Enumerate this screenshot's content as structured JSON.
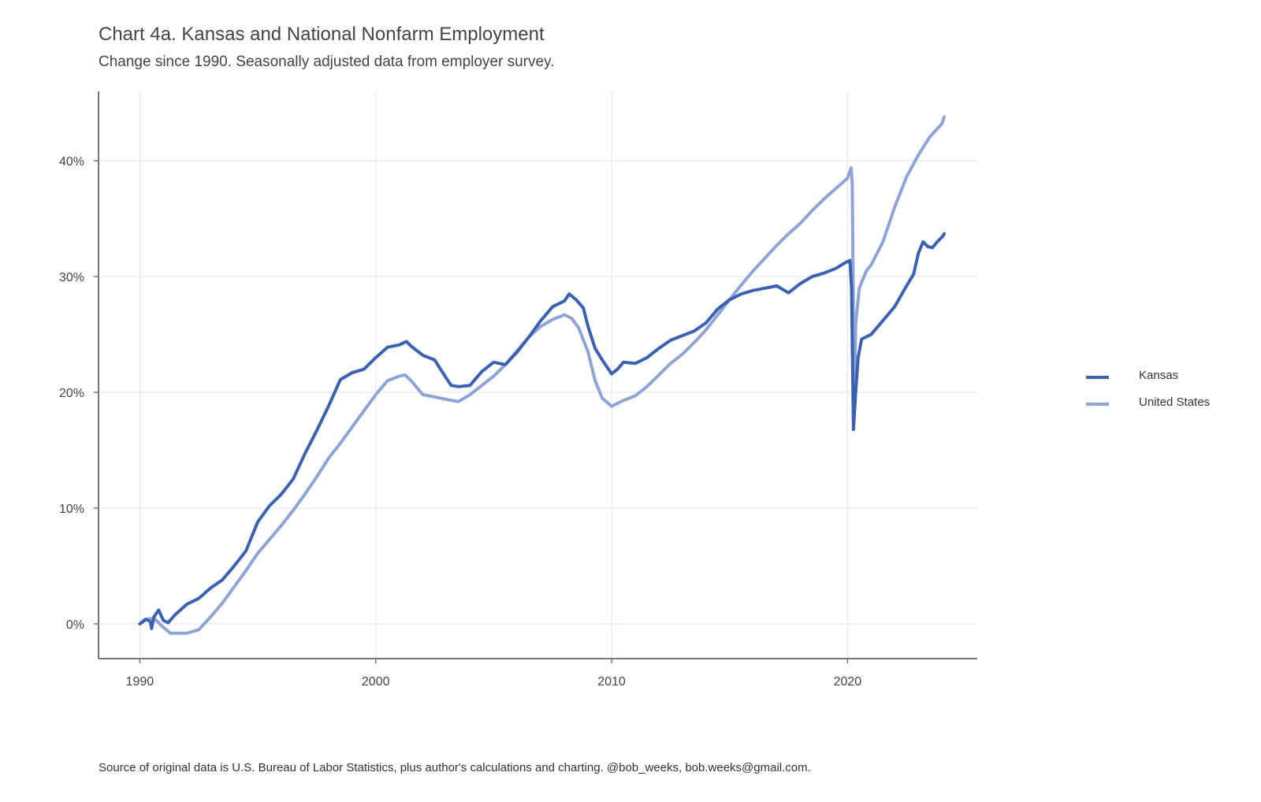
{
  "title": "Chart 4a. Kansas and National Nonfarm Employment",
  "subtitle": "Change since 1990. Seasonally adjusted data from employer survey.",
  "caption": "Source of original data is U.S. Bureau of Labor Statistics, plus author's calculations and charting. @bob_weeks, bob.weeks@gmail.com.",
  "colors": {
    "kansas": "#3a62b0",
    "united_states": "#8fa4d6",
    "grid": "#e4e4e4",
    "axis": "#777777"
  },
  "legend": {
    "placement": "right",
    "items": [
      {
        "label": "Kansas",
        "color": "#3a62b0"
      },
      {
        "label": "United States",
        "color": "#8fa4d6"
      }
    ]
  },
  "chart_data": {
    "type": "line",
    "title": "Chart 4a. Kansas and National Nonfarm Employment",
    "subtitle": "Change since 1990. Seasonally adjusted data from employer survey.",
    "xlabel": "",
    "ylabel": "",
    "xlim": [
      1988.25,
      2025.5
    ],
    "ylim": [
      -3,
      46
    ],
    "grid": true,
    "x_ticks": [
      1990,
      2000,
      2010,
      2020
    ],
    "x_tick_labels": [
      "1990",
      "2000",
      "2010",
      "2020"
    ],
    "y_ticks": [
      0,
      10,
      20,
      30,
      40
    ],
    "y_tick_labels": [
      "0%",
      "10%",
      "20%",
      "30%",
      "40%"
    ],
    "series": [
      {
        "name": "Kansas",
        "color": "#3a62b0",
        "points": [
          [
            1990.0,
            0.0
          ],
          [
            1990.25,
            0.4
          ],
          [
            1990.45,
            0.2
          ],
          [
            1990.5,
            -0.4
          ],
          [
            1990.6,
            0.6
          ],
          [
            1990.8,
            1.2
          ],
          [
            1991.0,
            0.3
          ],
          [
            1991.2,
            0.1
          ],
          [
            1991.5,
            0.8
          ],
          [
            1992.0,
            1.7
          ],
          [
            1992.5,
            2.2
          ],
          [
            1993.0,
            3.1
          ],
          [
            1993.5,
            3.8
          ],
          [
            1994.0,
            5.0
          ],
          [
            1994.5,
            6.3
          ],
          [
            1995.0,
            8.8
          ],
          [
            1995.5,
            10.2
          ],
          [
            1996.0,
            11.2
          ],
          [
            1996.5,
            12.5
          ],
          [
            1997.0,
            14.7
          ],
          [
            1997.5,
            16.7
          ],
          [
            1998.0,
            18.8
          ],
          [
            1998.5,
            21.1
          ],
          [
            1999.0,
            21.7
          ],
          [
            1999.5,
            22.0
          ],
          [
            2000.0,
            23.0
          ],
          [
            2000.5,
            23.9
          ],
          [
            2001.0,
            24.1
          ],
          [
            2001.3,
            24.4
          ],
          [
            2001.5,
            24.0
          ],
          [
            2002.0,
            23.2
          ],
          [
            2002.5,
            22.8
          ],
          [
            2003.0,
            21.2
          ],
          [
            2003.2,
            20.6
          ],
          [
            2003.5,
            20.5
          ],
          [
            2004.0,
            20.6
          ],
          [
            2004.5,
            21.8
          ],
          [
            2005.0,
            22.6
          ],
          [
            2005.5,
            22.4
          ],
          [
            2006.0,
            23.5
          ],
          [
            2006.5,
            24.8
          ],
          [
            2007.0,
            26.2
          ],
          [
            2007.5,
            27.4
          ],
          [
            2008.0,
            27.9
          ],
          [
            2008.2,
            28.5
          ],
          [
            2008.5,
            28.0
          ],
          [
            2008.8,
            27.3
          ],
          [
            2009.0,
            25.7
          ],
          [
            2009.3,
            23.8
          ],
          [
            2009.6,
            22.8
          ],
          [
            2010.0,
            21.6
          ],
          [
            2010.25,
            22.0
          ],
          [
            2010.5,
            22.6
          ],
          [
            2011.0,
            22.5
          ],
          [
            2011.5,
            23.0
          ],
          [
            2012.0,
            23.8
          ],
          [
            2012.5,
            24.5
          ],
          [
            2013.0,
            24.9
          ],
          [
            2013.5,
            25.3
          ],
          [
            2014.0,
            26.0
          ],
          [
            2014.5,
            27.2
          ],
          [
            2015.0,
            28.0
          ],
          [
            2015.5,
            28.5
          ],
          [
            2016.0,
            28.8
          ],
          [
            2016.5,
            29.0
          ],
          [
            2017.0,
            29.2
          ],
          [
            2017.5,
            28.6
          ],
          [
            2018.0,
            29.4
          ],
          [
            2018.5,
            30.0
          ],
          [
            2019.0,
            30.3
          ],
          [
            2019.5,
            30.7
          ],
          [
            2019.9,
            31.2
          ],
          [
            2020.1,
            31.4
          ],
          [
            2020.17,
            29.0
          ],
          [
            2020.25,
            16.8
          ],
          [
            2020.33,
            19.5
          ],
          [
            2020.45,
            23.0
          ],
          [
            2020.6,
            24.6
          ],
          [
            2021.0,
            25.0
          ],
          [
            2021.5,
            26.2
          ],
          [
            2022.0,
            27.4
          ],
          [
            2022.5,
            29.2
          ],
          [
            2022.8,
            30.2
          ],
          [
            2023.0,
            32.0
          ],
          [
            2023.2,
            33.0
          ],
          [
            2023.4,
            32.6
          ],
          [
            2023.6,
            32.5
          ],
          [
            2023.8,
            33.0
          ],
          [
            2024.0,
            33.4
          ],
          [
            2024.1,
            33.7
          ]
        ]
      },
      {
        "name": "United States",
        "color": "#8fa4d6",
        "points": [
          [
            1990.0,
            0.0
          ],
          [
            1990.3,
            0.4
          ],
          [
            1990.6,
            0.5
          ],
          [
            1991.0,
            -0.3
          ],
          [
            1991.3,
            -0.8
          ],
          [
            1991.6,
            -0.8
          ],
          [
            1992.0,
            -0.8
          ],
          [
            1992.5,
            -0.5
          ],
          [
            1993.0,
            0.6
          ],
          [
            1993.5,
            1.8
          ],
          [
            1994.0,
            3.2
          ],
          [
            1994.5,
            4.6
          ],
          [
            1995.0,
            6.1
          ],
          [
            1995.5,
            7.3
          ],
          [
            1996.0,
            8.5
          ],
          [
            1996.5,
            9.8
          ],
          [
            1997.0,
            11.2
          ],
          [
            1997.5,
            12.7
          ],
          [
            1998.0,
            14.3
          ],
          [
            1998.5,
            15.6
          ],
          [
            1999.0,
            17.0
          ],
          [
            1999.5,
            18.4
          ],
          [
            2000.0,
            19.8
          ],
          [
            2000.5,
            21.0
          ],
          [
            2001.0,
            21.4
          ],
          [
            2001.25,
            21.5
          ],
          [
            2001.5,
            21.0
          ],
          [
            2002.0,
            19.8
          ],
          [
            2002.5,
            19.6
          ],
          [
            2003.0,
            19.4
          ],
          [
            2003.5,
            19.2
          ],
          [
            2004.0,
            19.8
          ],
          [
            2004.5,
            20.6
          ],
          [
            2005.0,
            21.4
          ],
          [
            2005.5,
            22.4
          ],
          [
            2006.0,
            23.6
          ],
          [
            2006.5,
            24.8
          ],
          [
            2007.0,
            25.7
          ],
          [
            2007.5,
            26.3
          ],
          [
            2008.0,
            26.7
          ],
          [
            2008.3,
            26.4
          ],
          [
            2008.6,
            25.6
          ],
          [
            2009.0,
            23.5
          ],
          [
            2009.3,
            21.0
          ],
          [
            2009.6,
            19.5
          ],
          [
            2010.0,
            18.8
          ],
          [
            2010.5,
            19.3
          ],
          [
            2011.0,
            19.7
          ],
          [
            2011.5,
            20.5
          ],
          [
            2012.0,
            21.5
          ],
          [
            2012.5,
            22.5
          ],
          [
            2013.0,
            23.3
          ],
          [
            2013.5,
            24.3
          ],
          [
            2014.0,
            25.4
          ],
          [
            2014.5,
            26.7
          ],
          [
            2015.0,
            28.0
          ],
          [
            2015.5,
            29.3
          ],
          [
            2016.0,
            30.5
          ],
          [
            2016.5,
            31.6
          ],
          [
            2017.0,
            32.7
          ],
          [
            2017.5,
            33.7
          ],
          [
            2018.0,
            34.6
          ],
          [
            2018.5,
            35.7
          ],
          [
            2019.0,
            36.7
          ],
          [
            2019.5,
            37.6
          ],
          [
            2020.0,
            38.5
          ],
          [
            2020.15,
            39.4
          ],
          [
            2020.2,
            38.0
          ],
          [
            2020.28,
            19.0
          ],
          [
            2020.35,
            26.0
          ],
          [
            2020.5,
            29.0
          ],
          [
            2020.8,
            30.5
          ],
          [
            2021.0,
            31.0
          ],
          [
            2021.5,
            33.0
          ],
          [
            2022.0,
            36.0
          ],
          [
            2022.5,
            38.6
          ],
          [
            2023.0,
            40.5
          ],
          [
            2023.5,
            42.1
          ],
          [
            2024.0,
            43.2
          ],
          [
            2024.1,
            43.8
          ]
        ]
      }
    ]
  }
}
